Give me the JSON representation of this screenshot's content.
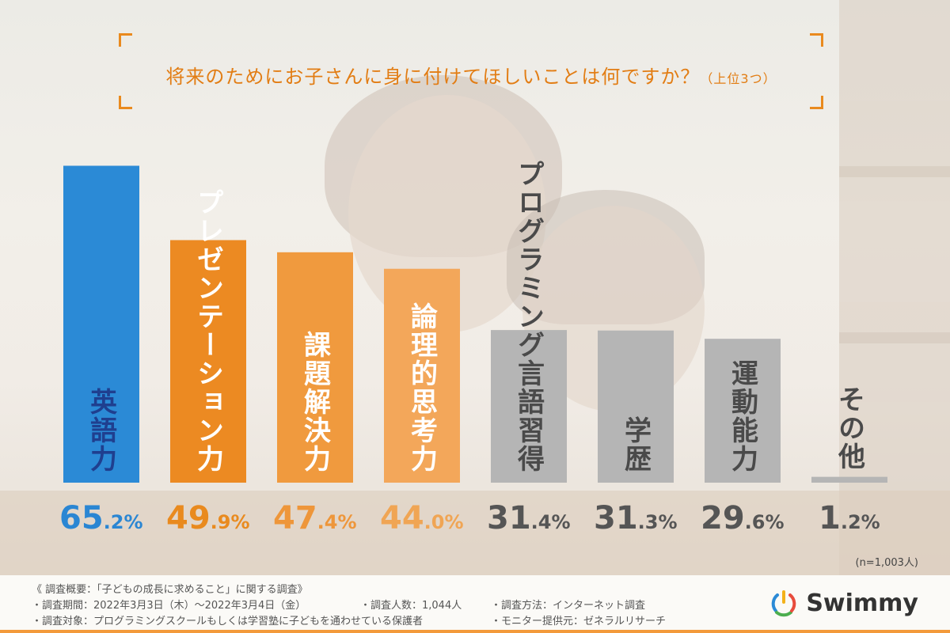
{
  "title": {
    "main": "将来のためにお子さんに身に付けてほしいことは何ですか？",
    "sub": "（上位3つ）"
  },
  "chart_data": {
    "type": "bar",
    "categories": [
      "英語力",
      "プレゼンテーション力",
      "課題解決力",
      "論理的思考力",
      "プログラミング言語習得",
      "学歴",
      "運動能力",
      "その他"
    ],
    "values": [
      65.2,
      49.9,
      47.4,
      44.0,
      31.4,
      31.3,
      29.6,
      1.2
    ],
    "value_labels": [
      {
        "int": "65",
        "dec": ".2%"
      },
      {
        "int": "49",
        "dec": ".9%"
      },
      {
        "int": "47",
        "dec": ".4%"
      },
      {
        "int": "44",
        "dec": ".0%"
      },
      {
        "int": "31",
        "dec": ".4%"
      },
      {
        "int": "31",
        "dec": ".3%"
      },
      {
        "int": "29",
        "dec": ".6%"
      },
      {
        "int": "1",
        "dec": ".2%"
      }
    ],
    "colors": [
      "#2b8ad6",
      "#ec8a22",
      "#f09a3e",
      "#f3a75a",
      "#b5b5b5",
      "#b5b5b5",
      "#b5b5b5",
      "#b5b5b5"
    ],
    "label_colors": [
      "#1f3f8f",
      "#ffffff",
      "#ffffff",
      "#ffffff",
      "#555555",
      "#555555",
      "#555555",
      "#555555"
    ],
    "pct_colors": [
      "#2a86d3",
      "#e98a1e",
      "#ee963a",
      "#f0a554",
      "#555555",
      "#555555",
      "#555555",
      "#555555"
    ],
    "ylim": [
      0,
      70
    ]
  },
  "sample_size": "(n=1,003人)",
  "notes": {
    "header": "《 調査概要：「子どもの成長に求めること」に関する調査》",
    "period": "・調査期間：2022年3月3日（木）～2022年3月4日（金）",
    "target": "・調査対象：プログラミングスクールもしくは学習塾に子どもを通わせている保護者",
    "count": "・調査人数：1,044人",
    "method": "・調査方法：インターネット調査",
    "provider": "・モニター提供元：ゼネラルリサーチ"
  },
  "logo": {
    "name": "Swimmy"
  }
}
